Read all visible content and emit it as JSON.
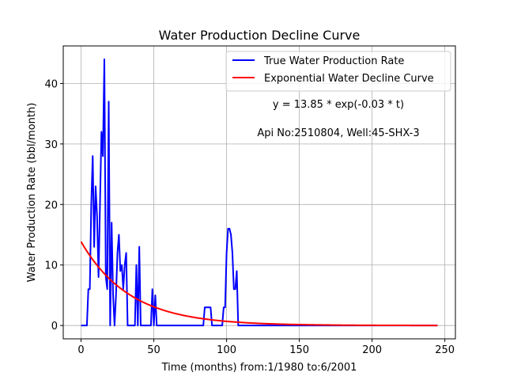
{
  "chart_data": {
    "type": "line",
    "title": "Water Production Decline Curve",
    "xlabel": "Time (months) from:1/1980 to:6/2001",
    "ylabel": "Water Production Rate (bbl/month)",
    "xlim": [
      -12.25,
      257.25
    ],
    "ylim": [
      -2.2,
      46.2
    ],
    "xticks": [
      0,
      50,
      100,
      150,
      200,
      250
    ],
    "yticks": [
      0,
      10,
      20,
      30,
      40
    ],
    "grid": true,
    "legend_position": "top-right",
    "annotations": [
      "y = 13.85 * exp(-0.03 * t)",
      "Api No:2510804, Well:45-SHX-3"
    ],
    "fit": {
      "a": 13.85,
      "b": 0.03,
      "x_range": [
        0,
        245
      ]
    },
    "series": [
      {
        "name": "True Water Production Rate",
        "color": "#0000ff",
        "x": [
          0,
          1,
          2,
          3,
          4,
          5,
          6,
          7,
          8,
          9,
          10,
          11,
          12,
          13,
          14,
          15,
          16,
          17,
          18,
          19,
          20,
          21,
          22,
          23,
          24,
          25,
          26,
          27,
          28,
          29,
          30,
          31,
          32,
          33,
          34,
          35,
          36,
          37,
          38,
          39,
          40,
          41,
          42,
          43,
          44,
          45,
          46,
          47,
          48,
          49,
          50,
          51,
          52,
          53,
          54,
          84,
          85,
          86,
          87,
          88,
          89,
          90,
          91,
          92,
          93,
          94,
          95,
          96,
          97,
          98,
          99,
          100,
          101,
          102,
          103,
          104,
          105,
          106,
          107,
          108,
          109,
          110,
          111,
          245
        ],
        "y": [
          0,
          0,
          0,
          0,
          0,
          6,
          6,
          20,
          28,
          13,
          23,
          18,
          8,
          20,
          32,
          28,
          44,
          8,
          6,
          37,
          0,
          17,
          5,
          0,
          5,
          12,
          15,
          9,
          10,
          6,
          10,
          12,
          0,
          0,
          0,
          0,
          0,
          0,
          10,
          0,
          13,
          0,
          0,
          0,
          0,
          0,
          0,
          0,
          0,
          6,
          0,
          5,
          0,
          0,
          0,
          0,
          3,
          3,
          3,
          3,
          3,
          0,
          0,
          0,
          0,
          0,
          0,
          0,
          0,
          3,
          3,
          12,
          16,
          16,
          15,
          12,
          6,
          6,
          9,
          0,
          0,
          0,
          0,
          0
        ]
      },
      {
        "name": "Exponential Water Decline Curve",
        "color": "#ff0000"
      }
    ]
  }
}
